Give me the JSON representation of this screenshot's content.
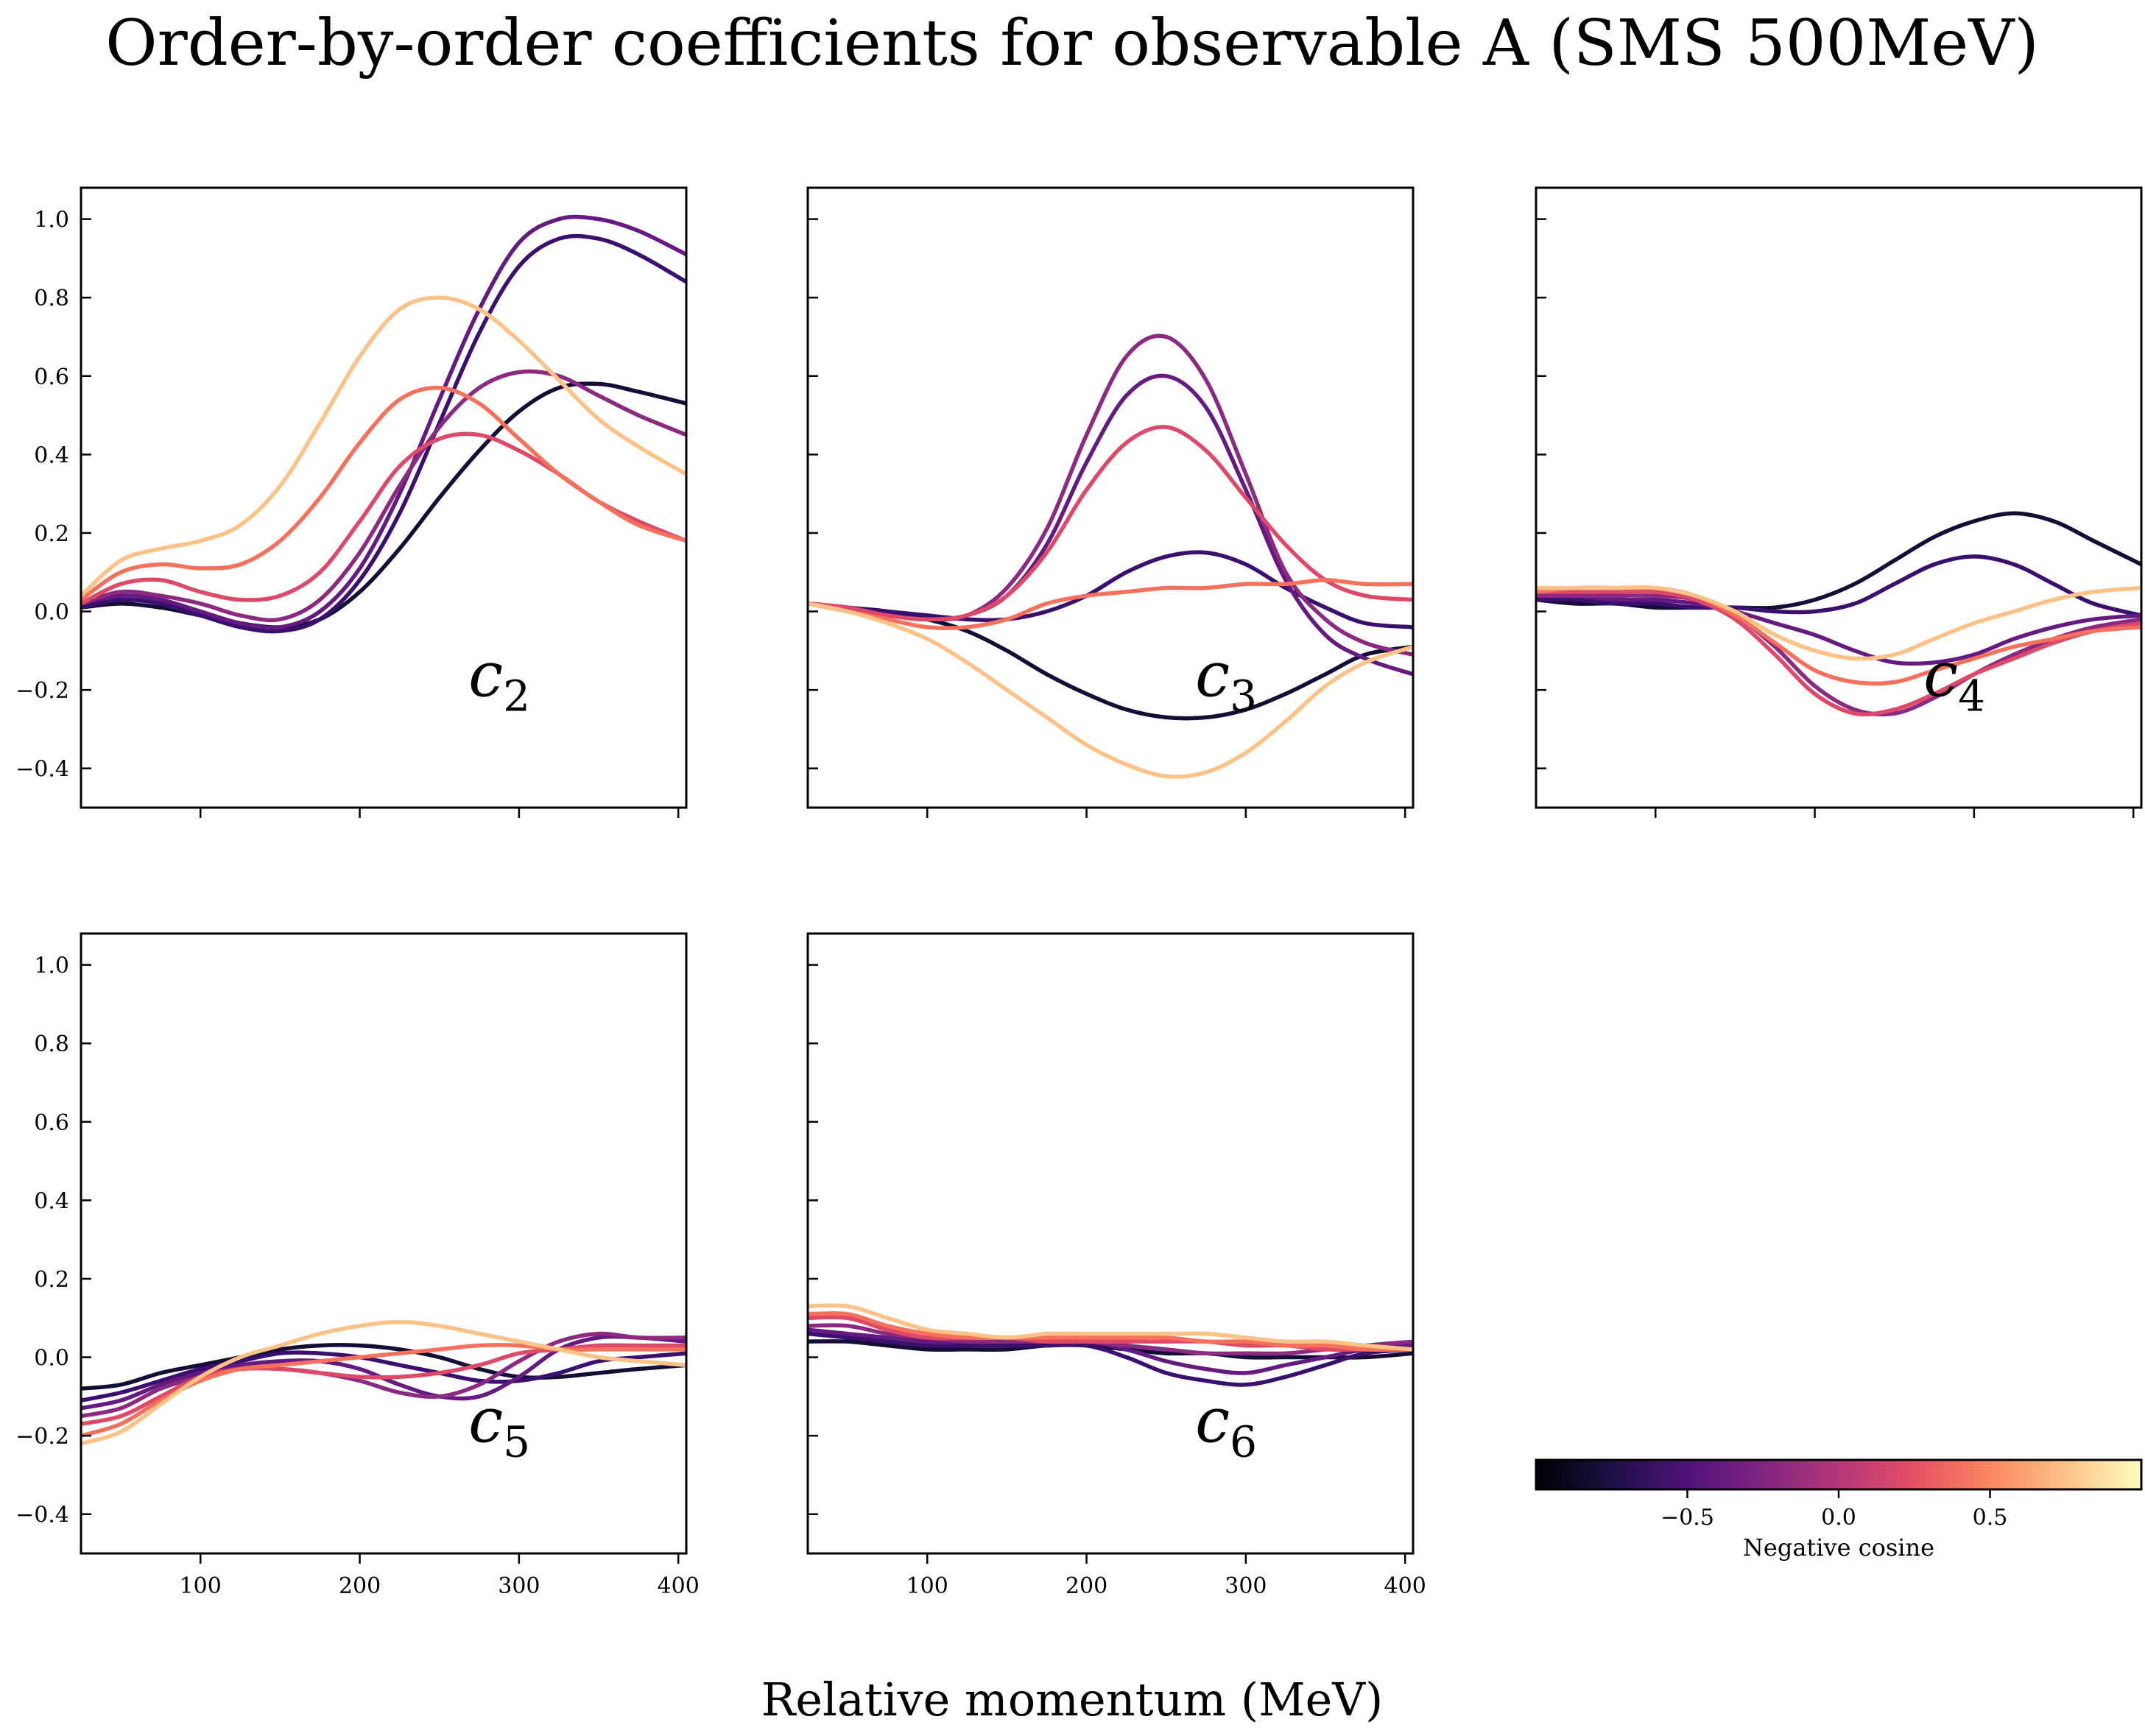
{
  "figure": {
    "title": "Order-by-order coefficients for observable A (SMS 500MeV)",
    "xlabel": "Relative momentum (MeV)"
  },
  "colorbar": {
    "label": "Negative cosine",
    "range": [
      -1,
      1
    ],
    "ticks": [
      -0.5,
      0.0,
      0.5
    ],
    "tick_labels": [
      "−0.5",
      "0.0",
      "0.5"
    ],
    "colormap": "magma"
  },
  "axes_common": {
    "xlim": [
      25,
      405
    ],
    "ylim": [
      -0.5,
      1.08
    ],
    "xticks": [
      100,
      200,
      300,
      400
    ],
    "xtick_labels": [
      "100",
      "200",
      "300",
      "400"
    ],
    "yticks": [
      -0.4,
      -0.2,
      0.0,
      0.2,
      0.4,
      0.6,
      0.8,
      1.0
    ],
    "ytick_labels": [
      "−0.4",
      "−0.2",
      "0.0",
      "0.2",
      "0.4",
      "0.6",
      "0.8",
      "1.0"
    ]
  },
  "chart_data": [
    {
      "type": "line",
      "panel_label": "c2",
      "label_sub": "2",
      "x": [
        25,
        50,
        75,
        100,
        125,
        150,
        175,
        200,
        225,
        250,
        275,
        300,
        325,
        350,
        375,
        405
      ],
      "series": [
        {
          "cosine": -0.9,
          "color": "#140e36",
          "values": [
            0.01,
            0.02,
            0.01,
            -0.01,
            -0.03,
            -0.04,
            -0.02,
            0.05,
            0.16,
            0.29,
            0.41,
            0.51,
            0.57,
            0.58,
            0.56,
            0.53
          ]
        },
        {
          "cosine": -0.65,
          "color": "#3b0f70",
          "values": [
            0.01,
            0.03,
            0.02,
            -0.01,
            -0.04,
            -0.05,
            -0.02,
            0.08,
            0.25,
            0.48,
            0.71,
            0.88,
            0.95,
            0.95,
            0.91,
            0.84
          ]
        },
        {
          "cosine": -0.45,
          "color": "#641a80",
          "values": [
            0.02,
            0.04,
            0.03,
            0.0,
            -0.03,
            -0.04,
            0.0,
            0.11,
            0.3,
            0.54,
            0.77,
            0.94,
            1.0,
            1.0,
            0.97,
            0.91
          ]
        },
        {
          "cosine": -0.2,
          "color": "#8c2981",
          "values": [
            0.02,
            0.05,
            0.04,
            0.02,
            -0.01,
            -0.02,
            0.03,
            0.15,
            0.32,
            0.47,
            0.57,
            0.61,
            0.6,
            0.55,
            0.5,
            0.45
          ]
        },
        {
          "cosine": 0.1,
          "color": "#de4968",
          "values": [
            0.02,
            0.07,
            0.08,
            0.05,
            0.03,
            0.04,
            0.1,
            0.23,
            0.37,
            0.44,
            0.45,
            0.41,
            0.35,
            0.28,
            0.23,
            0.18
          ]
        },
        {
          "cosine": 0.45,
          "color": "#f7705c",
          "values": [
            0.03,
            0.1,
            0.12,
            0.11,
            0.12,
            0.18,
            0.29,
            0.43,
            0.54,
            0.57,
            0.53,
            0.44,
            0.35,
            0.28,
            0.22,
            0.18
          ]
        },
        {
          "cosine": 0.8,
          "color": "#fec287",
          "values": [
            0.04,
            0.13,
            0.16,
            0.18,
            0.22,
            0.32,
            0.48,
            0.65,
            0.77,
            0.8,
            0.77,
            0.69,
            0.59,
            0.49,
            0.42,
            0.35
          ]
        }
      ]
    },
    {
      "type": "line",
      "panel_label": "c3",
      "label_sub": "3",
      "x": [
        25,
        50,
        75,
        100,
        125,
        150,
        175,
        200,
        225,
        250,
        275,
        300,
        325,
        350,
        375,
        405
      ],
      "series": [
        {
          "cosine": -0.9,
          "color": "#140e36",
          "values": [
            0.02,
            0.01,
            0.0,
            -0.02,
            -0.05,
            -0.1,
            -0.16,
            -0.21,
            -0.25,
            -0.27,
            -0.27,
            -0.25,
            -0.21,
            -0.16,
            -0.11,
            -0.09
          ]
        },
        {
          "cosine": -0.65,
          "color": "#3b0f70",
          "values": [
            0.02,
            0.01,
            0.0,
            -0.01,
            -0.02,
            -0.02,
            0.0,
            0.04,
            0.1,
            0.14,
            0.15,
            0.12,
            0.06,
            0.01,
            -0.03,
            -0.04
          ]
        },
        {
          "cosine": -0.45,
          "color": "#641a80",
          "values": [
            0.02,
            0.01,
            -0.01,
            -0.02,
            -0.01,
            0.04,
            0.17,
            0.38,
            0.55,
            0.6,
            0.52,
            0.31,
            0.08,
            -0.06,
            -0.12,
            -0.16
          ]
        },
        {
          "cosine": -0.2,
          "color": "#8c2981",
          "values": [
            0.02,
            0.01,
            -0.01,
            -0.02,
            -0.01,
            0.06,
            0.21,
            0.45,
            0.65,
            0.7,
            0.59,
            0.35,
            0.1,
            -0.02,
            -0.08,
            -0.11
          ]
        },
        {
          "cosine": 0.1,
          "color": "#de4968",
          "values": [
            0.02,
            0.01,
            -0.01,
            -0.02,
            -0.01,
            0.04,
            0.15,
            0.31,
            0.43,
            0.47,
            0.41,
            0.29,
            0.17,
            0.08,
            0.04,
            0.03
          ]
        },
        {
          "cosine": 0.45,
          "color": "#f7705c",
          "values": [
            0.02,
            0.0,
            -0.02,
            -0.04,
            -0.04,
            -0.02,
            0.02,
            0.04,
            0.05,
            0.06,
            0.06,
            0.07,
            0.07,
            0.08,
            0.07,
            0.07
          ]
        },
        {
          "cosine": 0.8,
          "color": "#fec287",
          "values": [
            0.02,
            0.0,
            -0.03,
            -0.07,
            -0.13,
            -0.2,
            -0.27,
            -0.34,
            -0.39,
            -0.42,
            -0.41,
            -0.36,
            -0.28,
            -0.19,
            -0.13,
            -0.09
          ]
        }
      ]
    },
    {
      "type": "line",
      "panel_label": "c4",
      "label_sub": "4",
      "x": [
        25,
        50,
        75,
        100,
        125,
        150,
        175,
        200,
        225,
        250,
        275,
        300,
        325,
        350,
        375,
        405
      ],
      "series": [
        {
          "cosine": -0.9,
          "color": "#140e36",
          "values": [
            0.03,
            0.02,
            0.02,
            0.01,
            0.01,
            0.01,
            0.01,
            0.03,
            0.07,
            0.13,
            0.19,
            0.23,
            0.25,
            0.23,
            0.18,
            0.12
          ]
        },
        {
          "cosine": -0.65,
          "color": "#3b0f70",
          "values": [
            0.03,
            0.03,
            0.02,
            0.02,
            0.01,
            0.01,
            0.0,
            0.0,
            0.02,
            0.07,
            0.12,
            0.14,
            0.12,
            0.07,
            0.02,
            -0.01
          ]
        },
        {
          "cosine": -0.45,
          "color": "#641a80",
          "values": [
            0.04,
            0.04,
            0.03,
            0.03,
            0.02,
            0.0,
            -0.03,
            -0.06,
            -0.1,
            -0.13,
            -0.13,
            -0.11,
            -0.07,
            -0.04,
            -0.02,
            -0.01
          ]
        },
        {
          "cosine": -0.2,
          "color": "#8c2981",
          "values": [
            0.04,
            0.04,
            0.04,
            0.04,
            0.03,
            -0.01,
            -0.09,
            -0.19,
            -0.25,
            -0.26,
            -0.22,
            -0.16,
            -0.11,
            -0.07,
            -0.04,
            -0.02
          ]
        },
        {
          "cosine": 0.1,
          "color": "#de4968",
          "values": [
            0.05,
            0.05,
            0.05,
            0.05,
            0.03,
            -0.02,
            -0.11,
            -0.21,
            -0.26,
            -0.25,
            -0.21,
            -0.16,
            -0.12,
            -0.08,
            -0.05,
            -0.03
          ]
        },
        {
          "cosine": 0.45,
          "color": "#f7705c",
          "values": [
            0.05,
            0.06,
            0.06,
            0.06,
            0.04,
            -0.01,
            -0.08,
            -0.15,
            -0.18,
            -0.18,
            -0.15,
            -0.12,
            -0.09,
            -0.07,
            -0.05,
            -0.04
          ]
        },
        {
          "cosine": 0.8,
          "color": "#fec287",
          "values": [
            0.06,
            0.06,
            0.06,
            0.06,
            0.04,
            0.0,
            -0.06,
            -0.1,
            -0.12,
            -0.11,
            -0.07,
            -0.03,
            0.0,
            0.03,
            0.05,
            0.06
          ]
        }
      ]
    },
    {
      "type": "line",
      "panel_label": "c5",
      "label_sub": "5",
      "x": [
        25,
        50,
        75,
        100,
        125,
        150,
        175,
        200,
        225,
        250,
        275,
        300,
        325,
        350,
        375,
        405
      ],
      "series": [
        {
          "cosine": -0.9,
          "color": "#140e36",
          "values": [
            -0.08,
            -0.07,
            -0.04,
            -0.02,
            0.0,
            0.02,
            0.03,
            0.03,
            0.02,
            0.0,
            -0.03,
            -0.05,
            -0.05,
            -0.04,
            -0.03,
            -0.02
          ]
        },
        {
          "cosine": -0.65,
          "color": "#3b0f70",
          "values": [
            -0.11,
            -0.09,
            -0.06,
            -0.03,
            -0.01,
            0.01,
            0.01,
            0.0,
            -0.02,
            -0.04,
            -0.06,
            -0.06,
            -0.04,
            -0.01,
            0.0,
            0.01
          ]
        },
        {
          "cosine": -0.45,
          "color": "#641a80",
          "values": [
            -0.13,
            -0.11,
            -0.07,
            -0.04,
            -0.02,
            -0.01,
            -0.01,
            -0.03,
            -0.07,
            -0.1,
            -0.1,
            -0.05,
            0.02,
            0.05,
            0.05,
            0.04
          ]
        },
        {
          "cosine": -0.2,
          "color": "#8c2981",
          "values": [
            -0.15,
            -0.13,
            -0.08,
            -0.05,
            -0.03,
            -0.03,
            -0.04,
            -0.06,
            -0.09,
            -0.1,
            -0.07,
            -0.01,
            0.04,
            0.06,
            0.05,
            0.05
          ]
        },
        {
          "cosine": 0.1,
          "color": "#de4968",
          "values": [
            -0.17,
            -0.15,
            -0.1,
            -0.05,
            -0.03,
            -0.03,
            -0.04,
            -0.05,
            -0.05,
            -0.04,
            -0.02,
            0.01,
            0.02,
            0.03,
            0.03,
            0.03
          ]
        },
        {
          "cosine": 0.45,
          "color": "#f7705c",
          "values": [
            -0.2,
            -0.17,
            -0.11,
            -0.06,
            -0.03,
            -0.02,
            -0.01,
            0.0,
            0.01,
            0.02,
            0.03,
            0.03,
            0.02,
            0.02,
            0.02,
            0.02
          ]
        },
        {
          "cosine": 0.8,
          "color": "#fec287",
          "values": [
            -0.22,
            -0.19,
            -0.12,
            -0.05,
            0.0,
            0.03,
            0.06,
            0.08,
            0.09,
            0.08,
            0.06,
            0.04,
            0.02,
            0.0,
            -0.01,
            -0.02
          ]
        }
      ]
    },
    {
      "type": "line",
      "panel_label": "c6",
      "label_sub": "6",
      "x": [
        25,
        50,
        75,
        100,
        125,
        150,
        175,
        200,
        225,
        250,
        275,
        300,
        325,
        350,
        375,
        405
      ],
      "series": [
        {
          "cosine": -0.9,
          "color": "#140e36",
          "values": [
            0.04,
            0.04,
            0.03,
            0.02,
            0.02,
            0.02,
            0.03,
            0.03,
            0.02,
            0.01,
            0.01,
            0.0,
            0.0,
            0.0,
            0.0,
            0.01
          ]
        },
        {
          "cosine": -0.65,
          "color": "#3b0f70",
          "values": [
            0.06,
            0.05,
            0.04,
            0.03,
            0.03,
            0.03,
            0.03,
            0.03,
            0.0,
            -0.04,
            -0.06,
            -0.07,
            -0.05,
            -0.02,
            0.01,
            0.02
          ]
        },
        {
          "cosine": -0.45,
          "color": "#641a80",
          "values": [
            0.07,
            0.06,
            0.05,
            0.04,
            0.04,
            0.04,
            0.04,
            0.04,
            0.02,
            -0.01,
            -0.03,
            -0.04,
            -0.02,
            0.0,
            0.02,
            0.03
          ]
        },
        {
          "cosine": -0.2,
          "color": "#8c2981",
          "values": [
            0.08,
            0.08,
            0.06,
            0.05,
            0.04,
            0.04,
            0.04,
            0.04,
            0.03,
            0.02,
            0.01,
            0.01,
            0.01,
            0.02,
            0.03,
            0.04
          ]
        },
        {
          "cosine": 0.1,
          "color": "#de4968",
          "values": [
            0.1,
            0.1,
            0.07,
            0.05,
            0.05,
            0.05,
            0.04,
            0.04,
            0.04,
            0.04,
            0.04,
            0.03,
            0.03,
            0.02,
            0.02,
            0.02
          ]
        },
        {
          "cosine": 0.45,
          "color": "#f7705c",
          "values": [
            0.11,
            0.11,
            0.08,
            0.06,
            0.05,
            0.05,
            0.05,
            0.05,
            0.05,
            0.05,
            0.04,
            0.04,
            0.03,
            0.03,
            0.02,
            0.02
          ]
        },
        {
          "cosine": 0.8,
          "color": "#fec287",
          "values": [
            0.13,
            0.13,
            0.1,
            0.07,
            0.06,
            0.05,
            0.06,
            0.06,
            0.06,
            0.06,
            0.06,
            0.05,
            0.04,
            0.04,
            0.03,
            0.02
          ]
        }
      ]
    }
  ]
}
